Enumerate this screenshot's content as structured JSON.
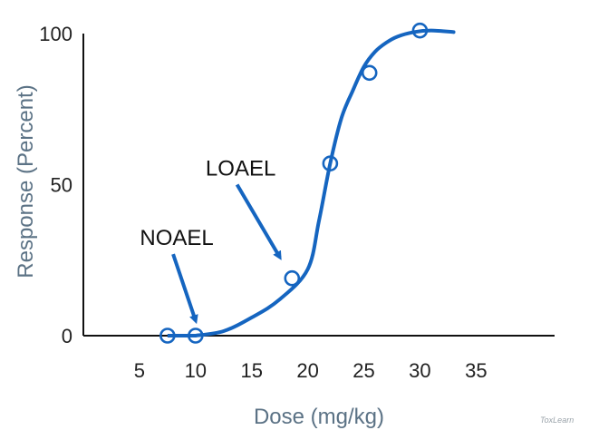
{
  "chart_data": {
    "type": "line",
    "xlabel": "Dose (mg/kg)",
    "ylabel": "Response (Percent)",
    "x_ticks": [
      "5",
      "10",
      "15",
      "20",
      "25",
      "30",
      "35"
    ],
    "y_ticks": [
      "0",
      "50",
      "100"
    ],
    "xlim": [
      0,
      42
    ],
    "ylim": [
      0,
      100
    ],
    "grid": false,
    "series": [
      {
        "color": "#1565c0",
        "curve": [
          [
            10,
            0
          ],
          [
            12.5,
            1.5
          ],
          [
            15,
            6
          ],
          [
            17.5,
            12
          ],
          [
            20,
            22
          ],
          [
            21,
            38
          ],
          [
            22,
            57
          ],
          [
            23,
            72
          ],
          [
            24,
            81
          ],
          [
            25,
            89
          ],
          [
            26,
            94
          ],
          [
            27,
            97
          ],
          [
            28,
            99
          ],
          [
            29.5,
            100.5
          ],
          [
            31,
            101
          ],
          [
            33,
            100.5
          ]
        ],
        "markers": [
          [
            7.5,
            0
          ],
          [
            10,
            0
          ],
          [
            18.6,
            19
          ],
          [
            22,
            57
          ],
          [
            25.5,
            87
          ],
          [
            30,
            101
          ]
        ]
      }
    ],
    "annotations": [
      {
        "text": "NOAEL",
        "target": [
          10,
          5
        ],
        "arrow_from": [
          8,
          27
        ]
      },
      {
        "text": "LOAEL",
        "target": [
          17.5,
          26
        ],
        "arrow_from": [
          13.7,
          50
        ]
      }
    ],
    "watermark": "ToxLearn"
  }
}
